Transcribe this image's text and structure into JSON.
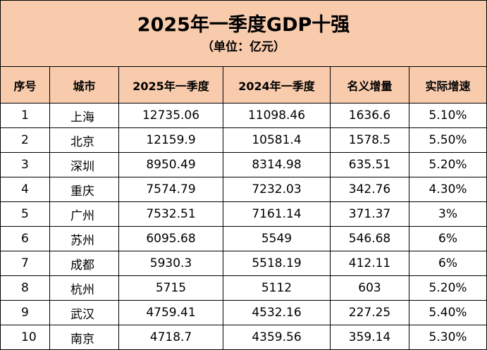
{
  "title": "2025年一季度GDP十强",
  "subtitle": "（单位：亿元）",
  "columns": [
    "序号",
    "城市",
    "2025年一季度",
    "2024年一季度",
    "名义增量",
    "实际增速"
  ],
  "rows": [
    [
      "1",
      "上海",
      "12735.06",
      "11098.46",
      "1636.6",
      "5.10%"
    ],
    [
      "2",
      "北京",
      "12159.9",
      "10581.4",
      "1578.5",
      "5.50%"
    ],
    [
      "3",
      "深圳",
      "8950.49",
      "8314.98",
      "635.51",
      "5.20%"
    ],
    [
      "4",
      "重庆",
      "7574.79",
      "7232.03",
      "342.76",
      "4.30%"
    ],
    [
      "5",
      "广州",
      "7532.51",
      "7161.14",
      "371.37",
      "3%"
    ],
    [
      "6",
      "苏州",
      "6095.68",
      "5549",
      "546.68",
      "6%"
    ],
    [
      "7",
      "成都",
      "5930.3",
      "5518.19",
      "412.11",
      "6%"
    ],
    [
      "8",
      "杭州",
      "5715",
      "5112",
      "603",
      "5.20%"
    ],
    [
      "9",
      "武汉",
      "4759.41",
      "4532.16",
      "227.25",
      "5.40%"
    ],
    [
      "10",
      "南京",
      "4718.7",
      "4359.56",
      "359.14",
      "5.30%"
    ]
  ],
  "colors": {
    "header_fill": "#f8cbad",
    "border": "#000000"
  }
}
